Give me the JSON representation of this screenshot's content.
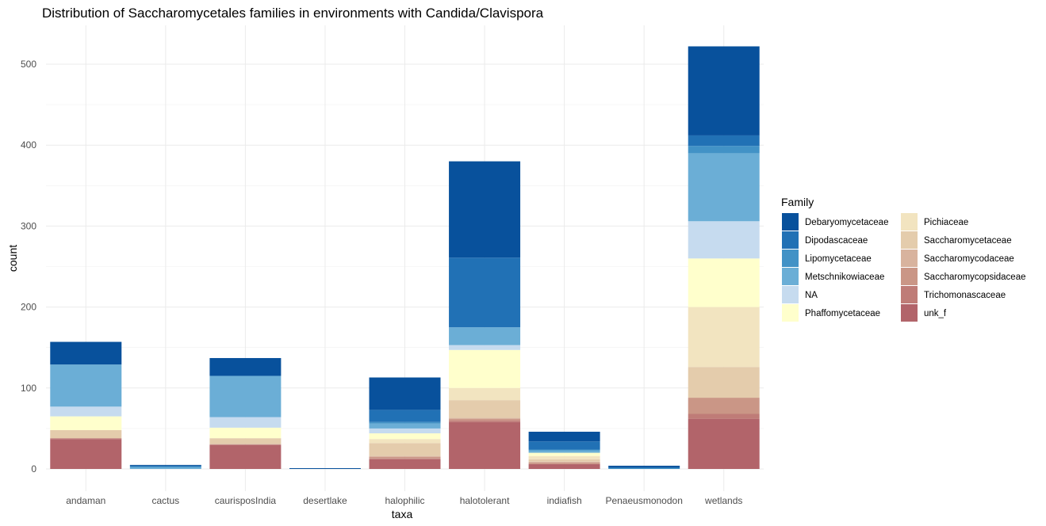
{
  "chart_data": {
    "type": "bar",
    "stacked": true,
    "title": "Distribution of Saccharomycetales families in environments with Candida/Clavispora",
    "xlabel": "taxa",
    "ylabel": "count",
    "ylim": [
      0,
      545
    ],
    "yticks": [
      0,
      100,
      200,
      300,
      400,
      500
    ],
    "grid": true,
    "legend_title": "Family",
    "legend_position": "right",
    "categories": [
      "andaman",
      "cactus",
      "caurisposIndia",
      "desertlake",
      "halophilic",
      "halotolerant",
      "indiafish",
      "Penaeusmonodon",
      "wetlands"
    ],
    "series": [
      {
        "name": "unk_f",
        "color": "#b2646a",
        "values": [
          37,
          0,
          30,
          0,
          12,
          58,
          6,
          0,
          62
        ]
      },
      {
        "name": "Trichomonascaceae",
        "color": "#bf7c77",
        "values": [
          1,
          0,
          0,
          0,
          1,
          2,
          0,
          0,
          6
        ]
      },
      {
        "name": "Saccharomycopsidaceae",
        "color": "#ca9686",
        "values": [
          0,
          0,
          0,
          0,
          2,
          2,
          2,
          0,
          20
        ]
      },
      {
        "name": "Saccharomycodaceae",
        "color": "#d8b39e",
        "values": [
          0,
          0,
          1,
          0,
          1,
          1,
          1,
          0,
          0
        ]
      },
      {
        "name": "Saccharomycetaceae",
        "color": "#e4ccac",
        "values": [
          10,
          0,
          7,
          0,
          16,
          22,
          3,
          0,
          38
        ]
      },
      {
        "name": "Pichiaceae",
        "color": "#f2e4c0",
        "values": [
          0,
          0,
          0,
          0,
          5,
          15,
          4,
          0,
          74
        ]
      },
      {
        "name": "Phaffomycetaceae",
        "color": "#ffffcc",
        "values": [
          17,
          0,
          13,
          0,
          7,
          47,
          4,
          0,
          60
        ]
      },
      {
        "name": "NA",
        "color": "#c6dbef",
        "values": [
          12,
          0,
          13,
          0,
          6,
          6,
          0,
          0,
          46
        ]
      },
      {
        "name": "Metschnikowiaceae",
        "color": "#6baed6",
        "values": [
          52,
          2,
          51,
          0,
          6,
          22,
          3,
          0,
          84
        ]
      },
      {
        "name": "Lipomycetaceae",
        "color": "#4292c6",
        "values": [
          0,
          1,
          0,
          0,
          2,
          0,
          1,
          1,
          9
        ]
      },
      {
        "name": "Dipodascaceae",
        "color": "#2171b5",
        "values": [
          0,
          1,
          0,
          0,
          15,
          86,
          10,
          1,
          13
        ]
      },
      {
        "name": "Debaryomycetaceae",
        "color": "#08519c",
        "values": [
          28,
          1,
          22,
          1,
          40,
          119,
          12,
          2,
          110
        ]
      }
    ],
    "legend_columns": [
      [
        "Debaryomycetaceae",
        "Dipodascaceae",
        "Lipomycetaceae",
        "Metschnikowiaceae",
        "NA",
        "Phaffomycetaceae"
      ],
      [
        "Pichiaceae",
        "Saccharomycetaceae",
        "Saccharomycodaceae",
        "Saccharomycopsidaceae",
        "Trichomonascaceae",
        "unk_f"
      ]
    ]
  }
}
